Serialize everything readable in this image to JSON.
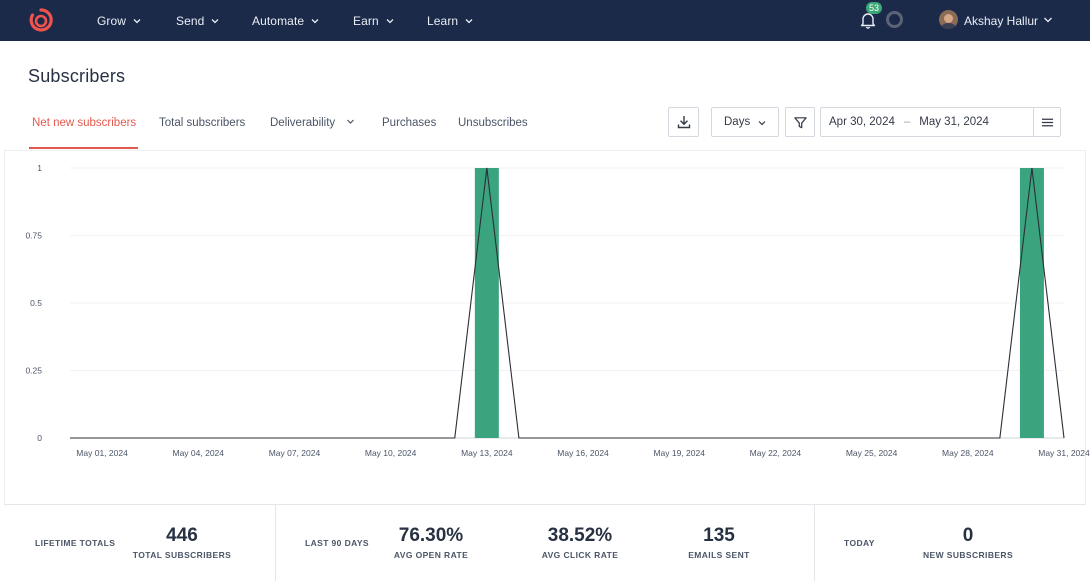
{
  "nav": {
    "items": [
      {
        "label": "Grow"
      },
      {
        "label": "Send"
      },
      {
        "label": "Automate"
      },
      {
        "label": "Earn"
      },
      {
        "label": "Learn"
      }
    ],
    "notifications_count": "53",
    "user_name": "Akshay Hallur"
  },
  "page": {
    "title": "Subscribers"
  },
  "tabs": [
    {
      "label": "Net new subscribers",
      "active": true
    },
    {
      "label": "Total subscribers"
    },
    {
      "label": "Deliverability",
      "has_dropdown": true
    },
    {
      "label": "Purchases"
    },
    {
      "label": "Unsubscribes"
    }
  ],
  "controls": {
    "interval_value": "Days",
    "date_from": "Apr 30, 2024",
    "date_separator": "–",
    "date_to": "May 31, 2024"
  },
  "colors": {
    "nav_bg": "#1c2a4a",
    "accent": "#e25a4f",
    "bar": "#3aa47e",
    "badge": "#3ba776"
  },
  "chart_data": {
    "type": "bar",
    "overlay": "line",
    "x": [
      "Apr 30, 2024",
      "May 01, 2024",
      "May 02, 2024",
      "May 03, 2024",
      "May 04, 2024",
      "May 05, 2024",
      "May 06, 2024",
      "May 07, 2024",
      "May 08, 2024",
      "May 09, 2024",
      "May 10, 2024",
      "May 11, 2024",
      "May 12, 2024",
      "May 13, 2024",
      "May 14, 2024",
      "May 15, 2024",
      "May 16, 2024",
      "May 17, 2024",
      "May 18, 2024",
      "May 19, 2024",
      "May 20, 2024",
      "May 21, 2024",
      "May 22, 2024",
      "May 23, 2024",
      "May 24, 2024",
      "May 25, 2024",
      "May 26, 2024",
      "May 27, 2024",
      "May 28, 2024",
      "May 29, 2024",
      "May 30, 2024",
      "May 31, 2024"
    ],
    "values": [
      0,
      0,
      0,
      0,
      0,
      0,
      0,
      0,
      0,
      0,
      0,
      0,
      0,
      1,
      0,
      0,
      0,
      0,
      0,
      0,
      0,
      0,
      0,
      0,
      0,
      0,
      0,
      0,
      0,
      0,
      1,
      0
    ],
    "x_tick_labels": [
      "May 01, 2024",
      "May 04, 2024",
      "May 07, 2024",
      "May 10, 2024",
      "May 13, 2024",
      "May 16, 2024",
      "May 19, 2024",
      "May 22, 2024",
      "May 25, 2024",
      "May 28, 2024",
      "May 31, 2024"
    ],
    "y_tick_labels": [
      "0",
      "0.25",
      "0.5",
      "0.75",
      "1"
    ],
    "y_ticks": [
      0,
      0.25,
      0.5,
      0.75,
      1
    ],
    "ylim": [
      0,
      1
    ],
    "grid": true
  },
  "stats": {
    "lifetime": {
      "label": "LIFETIME TOTALS",
      "total_value": "446",
      "total_caption": "TOTAL SUBSCRIBERS"
    },
    "last90": {
      "label": "LAST 90 DAYS",
      "open_value": "76.30%",
      "open_caption": "AVG OPEN RATE",
      "click_value": "38.52%",
      "click_caption": "AVG CLICK RATE",
      "sent_value": "135",
      "sent_caption": "EMAILS SENT"
    },
    "today": {
      "label": "TODAY",
      "new_value": "0",
      "new_caption": "NEW SUBSCRIBERS"
    }
  }
}
